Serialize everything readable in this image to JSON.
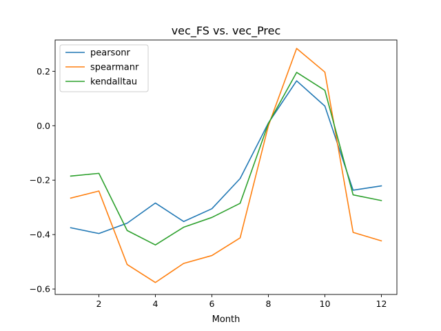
{
  "chart_data": {
    "type": "line",
    "title": "vec_FS vs. vec_Prec",
    "xlabel": "Month",
    "ylabel": "",
    "x": [
      1,
      2,
      3,
      4,
      5,
      6,
      7,
      8,
      9,
      10,
      11,
      12
    ],
    "xlim": [
      0.45,
      12.55
    ],
    "ylim": [
      -0.62,
      0.315
    ],
    "xticks": [
      2,
      4,
      6,
      8,
      10,
      12
    ],
    "yticks": [
      -0.6,
      -0.4,
      -0.2,
      0.0,
      0.2
    ],
    "xtick_labels": [
      "2",
      "4",
      "6",
      "8",
      "10",
      "12"
    ],
    "ytick_labels": [
      "−0.6",
      "−0.4",
      "−0.2",
      "0.0",
      "0.2"
    ],
    "grid": false,
    "legend_position": "top-left",
    "series": [
      {
        "name": "pearsonr",
        "color": "#1f77b4",
        "values": [
          -0.375,
          -0.396,
          -0.358,
          -0.284,
          -0.352,
          -0.305,
          -0.194,
          0.01,
          0.165,
          0.072,
          -0.237,
          -0.221
        ]
      },
      {
        "name": "spearmanr",
        "color": "#ff7f0e",
        "values": [
          -0.266,
          -0.24,
          -0.51,
          -0.576,
          -0.506,
          -0.477,
          -0.412,
          0.0,
          0.284,
          0.197,
          -0.392,
          -0.423
        ]
      },
      {
        "name": "kendalltau",
        "color": "#2ca02c",
        "values": [
          -0.185,
          -0.175,
          -0.385,
          -0.438,
          -0.373,
          -0.337,
          -0.285,
          0.008,
          0.196,
          0.13,
          -0.254,
          -0.275
        ]
      }
    ]
  }
}
